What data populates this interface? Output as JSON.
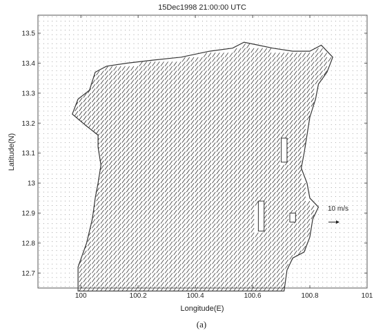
{
  "chart_data": {
    "type": "vector-field",
    "title": "15Dec1998 21:00:00 UTC",
    "xlabel": "Longitude(E)",
    "ylabel": "Latitude(N)",
    "xlim": [
      99.85,
      101.0
    ],
    "ylim": [
      12.65,
      13.56
    ],
    "x_ticks": [
      "100",
      "100.2",
      "100.4",
      "100.6",
      "100.8",
      "101"
    ],
    "x_tick_values": [
      100.0,
      100.2,
      100.4,
      100.6,
      100.8,
      101.0
    ],
    "y_ticks": [
      "12.7",
      "12.8",
      "12.9",
      "13",
      "13.1",
      "13.2",
      "13.3",
      "13.4",
      "13.5"
    ],
    "y_tick_values": [
      12.7,
      12.8,
      12.9,
      13.0,
      13.1,
      13.2,
      13.3,
      13.4,
      13.5
    ],
    "grid": false,
    "reference_vector": {
      "label": "10 m/s",
      "u": 10,
      "v": 0,
      "lon": 100.865,
      "lat": 12.87
    },
    "vector_spacing_deg": {
      "lon": 0.015,
      "lat": 0.015
    },
    "vector_direction_deg": 235,
    "land_marker": "dot",
    "coastline_lonlat": [
      [
        99.97,
        13.23
      ],
      [
        99.99,
        13.28
      ],
      [
        100.03,
        13.31
      ],
      [
        100.05,
        13.37
      ],
      [
        100.09,
        13.39
      ],
      [
        100.16,
        13.4
      ],
      [
        100.25,
        13.41
      ],
      [
        100.35,
        13.42
      ],
      [
        100.45,
        13.44
      ],
      [
        100.53,
        13.45
      ],
      [
        100.57,
        13.47
      ],
      [
        100.62,
        13.46
      ],
      [
        100.67,
        13.45
      ],
      [
        100.74,
        13.44
      ],
      [
        100.8,
        13.44
      ],
      [
        100.84,
        13.46
      ],
      [
        100.88,
        13.42
      ],
      [
        100.86,
        13.37
      ],
      [
        100.83,
        13.33
      ],
      [
        100.82,
        13.28
      ],
      [
        100.8,
        13.22
      ],
      [
        100.79,
        13.16
      ],
      [
        100.78,
        13.1
      ],
      [
        100.77,
        13.05
      ],
      [
        100.79,
        13.0
      ],
      [
        100.8,
        12.95
      ],
      [
        100.83,
        12.92
      ],
      [
        100.81,
        12.88
      ],
      [
        100.8,
        12.82
      ],
      [
        100.78,
        12.77
      ],
      [
        100.74,
        12.75
      ],
      [
        100.72,
        12.71
      ],
      [
        100.71,
        12.64
      ],
      [
        99.99,
        12.64
      ],
      [
        99.99,
        12.72
      ],
      [
        100.02,
        12.8
      ],
      [
        100.04,
        12.88
      ],
      [
        100.05,
        12.95
      ],
      [
        100.06,
        13.0
      ],
      [
        100.07,
        13.06
      ],
      [
        100.06,
        13.12
      ],
      [
        100.06,
        13.16
      ],
      [
        100.02,
        13.19
      ],
      [
        99.97,
        13.23
      ]
    ],
    "islands_lonlat": [
      [
        [
          100.7,
          13.15
        ],
        [
          100.72,
          13.15
        ],
        [
          100.72,
          13.07
        ],
        [
          100.7,
          13.07
        ]
      ],
      [
        [
          100.62,
          12.94
        ],
        [
          100.64,
          12.94
        ],
        [
          100.64,
          12.84
        ],
        [
          100.62,
          12.84
        ]
      ],
      [
        [
          100.73,
          12.9
        ],
        [
          100.75,
          12.9
        ],
        [
          100.75,
          12.87
        ],
        [
          100.73,
          12.87
        ]
      ]
    ]
  },
  "caption": "(a)"
}
